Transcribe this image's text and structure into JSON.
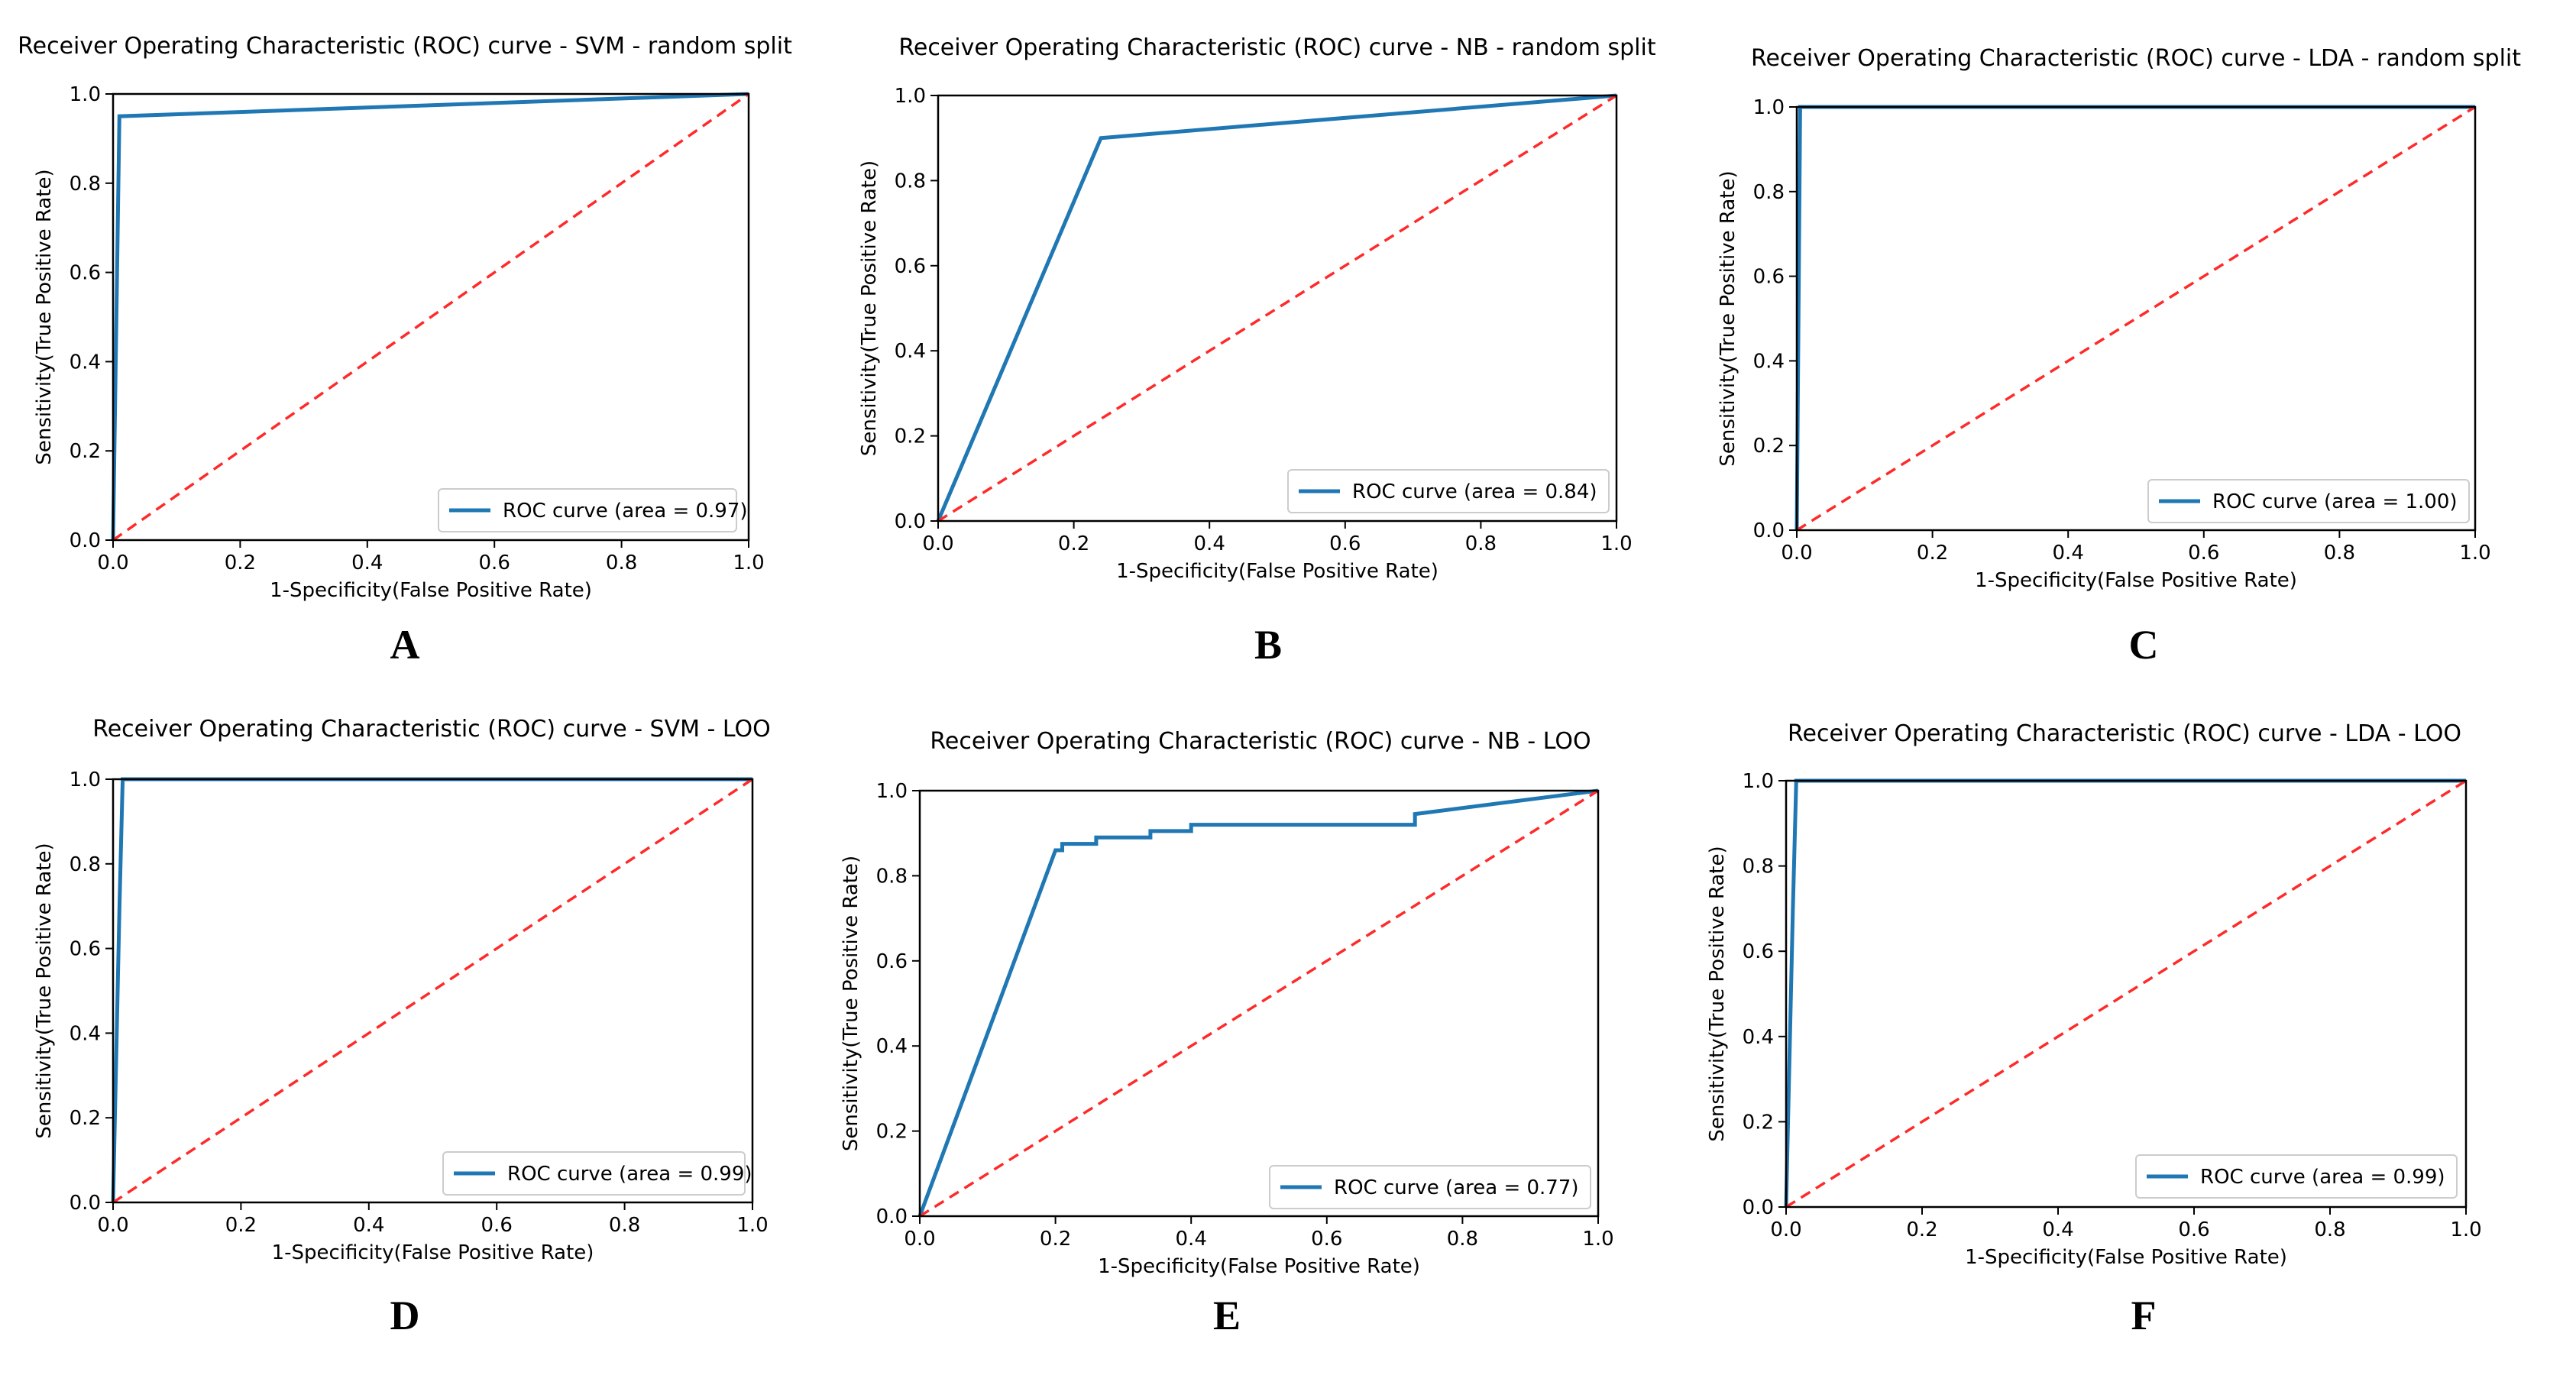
{
  "figure": {
    "colors": {
      "roc": "#1f77b4",
      "chance": "#ff2a2a",
      "axis": "#000000",
      "background": "#ffffff"
    }
  },
  "chart_data": [
    {
      "type": "line",
      "panel_label": "A",
      "title": "Receiver Operating Characteristic (ROC) curve - SVM - random split",
      "xlabel": "1-Specificity(False Positive Rate)",
      "ylabel": "Sensitivity(True Positive Rate)",
      "xlim": [
        0,
        1
      ],
      "ylim": [
        0,
        1
      ],
      "xticks": [
        "0.0",
        "0.2",
        "0.4",
        "0.6",
        "0.8",
        "1.0"
      ],
      "yticks": [
        "0.0",
        "0.2",
        "0.4",
        "0.6",
        "0.8",
        "1.0"
      ],
      "grid": false,
      "legend_position": "lower right",
      "series": [
        {
          "name": "ROC curve (area = 0.97)",
          "style": "solid",
          "color": "#1f77b4",
          "x": [
            0.0,
            0.01,
            1.0
          ],
          "y": [
            0.0,
            0.95,
            1.0
          ]
        },
        {
          "style": "dashed",
          "color": "#ff2a2a",
          "x": [
            0,
            1
          ],
          "y": [
            0,
            1
          ]
        }
      ]
    },
    {
      "type": "line",
      "panel_label": "B",
      "title": "Receiver Operating Characteristic (ROC) curve - NB - random split",
      "xlabel": "1-Specificity(False Positive Rate)",
      "ylabel": "Sensitivity(True Positive Rate)",
      "xlim": [
        0,
        1
      ],
      "ylim": [
        0,
        1
      ],
      "xticks": [
        "0.0",
        "0.2",
        "0.4",
        "0.6",
        "0.8",
        "1.0"
      ],
      "yticks": [
        "0.0",
        "0.2",
        "0.4",
        "0.6",
        "0.8",
        "1.0"
      ],
      "grid": false,
      "legend_position": "lower right",
      "series": [
        {
          "name": "ROC curve (area = 0.84)",
          "style": "solid",
          "color": "#1f77b4",
          "x": [
            0.0,
            0.24,
            1.0
          ],
          "y": [
            0.0,
            0.9,
            1.0
          ]
        },
        {
          "style": "dashed",
          "color": "#ff2a2a",
          "x": [
            0,
            1
          ],
          "y": [
            0,
            1
          ]
        }
      ]
    },
    {
      "type": "line",
      "panel_label": "C",
      "title": "Receiver Operating Characteristic (ROC) curve - LDA - random split",
      "xlabel": "1-Specificity(False Positive Rate)",
      "ylabel": "Sensitivity(True Positive Rate)",
      "xlim": [
        0,
        1
      ],
      "ylim": [
        0,
        1
      ],
      "xticks": [
        "0.0",
        "0.2",
        "0.4",
        "0.6",
        "0.8",
        "1.0"
      ],
      "yticks": [
        "0.0",
        "0.2",
        "0.4",
        "0.6",
        "0.8",
        "1.0"
      ],
      "grid": false,
      "legend_position": "lower right",
      "series": [
        {
          "name": "ROC curve (area = 1.00)",
          "style": "solid",
          "color": "#1f77b4",
          "x": [
            0.0,
            0.005,
            1.0
          ],
          "y": [
            0.0,
            1.0,
            1.0
          ]
        },
        {
          "style": "dashed",
          "color": "#ff2a2a",
          "x": [
            0,
            1
          ],
          "y": [
            0,
            1
          ]
        }
      ]
    },
    {
      "type": "line",
      "panel_label": "D",
      "title": "Receiver Operating Characteristic (ROC) curve - SVM - LOO",
      "xlabel": "1-Specificity(False Positive Rate)",
      "ylabel": "Sensitivity(True Positive Rate)",
      "xlim": [
        0,
        1
      ],
      "ylim": [
        0,
        1
      ],
      "xticks": [
        "0.0",
        "0.2",
        "0.4",
        "0.6",
        "0.8",
        "1.0"
      ],
      "yticks": [
        "0.0",
        "0.2",
        "0.4",
        "0.6",
        "0.8",
        "1.0"
      ],
      "grid": false,
      "legend_position": "lower right",
      "series": [
        {
          "name": "ROC curve (area = 0.99)",
          "style": "solid",
          "color": "#1f77b4",
          "x": [
            0.0,
            0.01,
            0.015,
            1.0
          ],
          "y": [
            0.0,
            0.7,
            1.0,
            1.0
          ]
        },
        {
          "style": "dashed",
          "color": "#ff2a2a",
          "x": [
            0,
            1
          ],
          "y": [
            0,
            1
          ]
        }
      ]
    },
    {
      "type": "line",
      "panel_label": "E",
      "title": "Receiver Operating Characteristic (ROC) curve - NB - LOO",
      "xlabel": "1-Specificity(False Positive Rate)",
      "ylabel": "Sensitivity(True Positive Rate)",
      "xlim": [
        0,
        1
      ],
      "ylim": [
        0,
        1
      ],
      "xticks": [
        "0.0",
        "0.2",
        "0.4",
        "0.6",
        "0.8",
        "1.0"
      ],
      "yticks": [
        "0.0",
        "0.2",
        "0.4",
        "0.6",
        "0.8",
        "1.0"
      ],
      "grid": false,
      "legend_position": "lower right",
      "series": [
        {
          "name": "ROC curve (area = 0.77)",
          "style": "solid",
          "color": "#1f77b4",
          "x": [
            0.0,
            0.2,
            0.21,
            0.21,
            0.26,
            0.26,
            0.34,
            0.34,
            0.4,
            0.4,
            0.73,
            0.73,
            1.0
          ],
          "y": [
            0.0,
            0.86,
            0.86,
            0.875,
            0.875,
            0.89,
            0.89,
            0.905,
            0.905,
            0.92,
            0.92,
            0.945,
            1.0
          ]
        },
        {
          "style": "dashed",
          "color": "#ff2a2a",
          "x": [
            0,
            1
          ],
          "y": [
            0,
            1
          ]
        }
      ]
    },
    {
      "type": "line",
      "panel_label": "F",
      "title": "Receiver Operating Characteristic (ROC) curve - LDA - LOO",
      "xlabel": "1-Specificity(False Positive Rate)",
      "ylabel": "Sensitivity(True Positive Rate)",
      "xlim": [
        0,
        1
      ],
      "ylim": [
        0,
        1
      ],
      "xticks": [
        "0.0",
        "0.2",
        "0.4",
        "0.6",
        "0.8",
        "1.0"
      ],
      "yticks": [
        "0.0",
        "0.2",
        "0.4",
        "0.6",
        "0.8",
        "1.0"
      ],
      "grid": false,
      "legend_position": "lower right",
      "series": [
        {
          "name": "ROC curve (area = 0.99)",
          "style": "solid",
          "color": "#1f77b4",
          "x": [
            0.0,
            0.01,
            0.015,
            1.0
          ],
          "y": [
            0.0,
            0.7,
            1.0,
            1.0
          ]
        },
        {
          "style": "dashed",
          "color": "#ff2a2a",
          "x": [
            0,
            1
          ],
          "y": [
            0,
            1
          ]
        }
      ]
    }
  ]
}
